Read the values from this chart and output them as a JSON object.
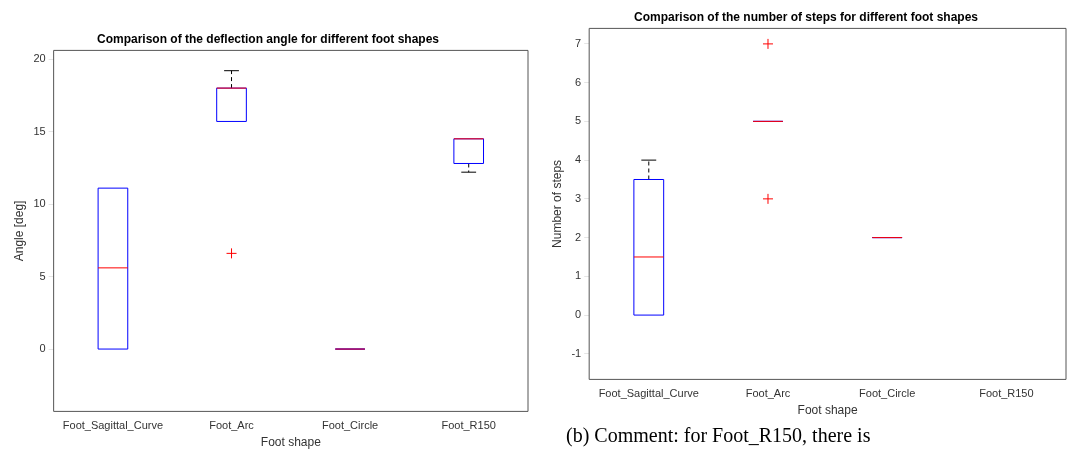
{
  "chart_data": [
    {
      "type": "box",
      "title": "Comparison of the deflection angle for different foot shapes",
      "xlabel": "Foot shape",
      "ylabel": "Angle [deg]",
      "categories": [
        "Foot_Sagittal_Curve",
        "Foot_Arc",
        "Foot_Circle",
        "Foot_R150"
      ],
      "ylim": [
        -4.3,
        20.6
      ],
      "yticks": [
        0,
        5,
        10,
        15,
        20
      ],
      "grid": false,
      "marker": "cross",
      "series": [
        {
          "color": "#0000ff",
          "boxes": [
            {
              "low": 0,
              "q1": 0,
              "median": 5.6,
              "q3": 11.1,
              "high": 11.1
            },
            {
              "low": 15.7,
              "q1": 15.7,
              "median": 18.0,
              "q3": 18.0,
              "high": 19.2,
              "outliers": [
                6.6
              ]
            },
            {
              "low": 0,
              "q1": 0,
              "median": 0,
              "q3": 0,
              "high": 0
            },
            {
              "low": 12.2,
              "q1": 12.8,
              "median": 14.5,
              "q3": 14.5,
              "high": 14.5
            }
          ]
        }
      ]
    },
    {
      "type": "box",
      "title": "Comparison of the number of steps for different foot shapes",
      "xlabel": "Foot shape",
      "ylabel": "Number of steps",
      "categories": [
        "Foot_Sagittal_Curve",
        "Foot_Arc",
        "Foot_Circle",
        "Foot_R150"
      ],
      "ylim": [
        -1.66,
        7.4
      ],
      "yticks": [
        -1,
        0,
        1,
        2,
        3,
        4,
        5,
        6,
        7
      ],
      "grid": false,
      "marker": "cross",
      "annotations": [
        "(b) Comment: for Foot_R150, there is"
      ],
      "series": [
        {
          "color": "#0000ff",
          "boxes": [
            {
              "low": 0,
              "q1": 0,
              "median": 1.5,
              "q3": 3.5,
              "high": 4
            },
            {
              "low": 5,
              "q1": 5,
              "median": 5,
              "q3": 5,
              "high": 5,
              "outliers": [
                7,
                3
              ]
            },
            {
              "low": 2,
              "q1": 2,
              "median": 2,
              "q3": 2,
              "high": 2
            },
            null
          ]
        }
      ]
    }
  ]
}
